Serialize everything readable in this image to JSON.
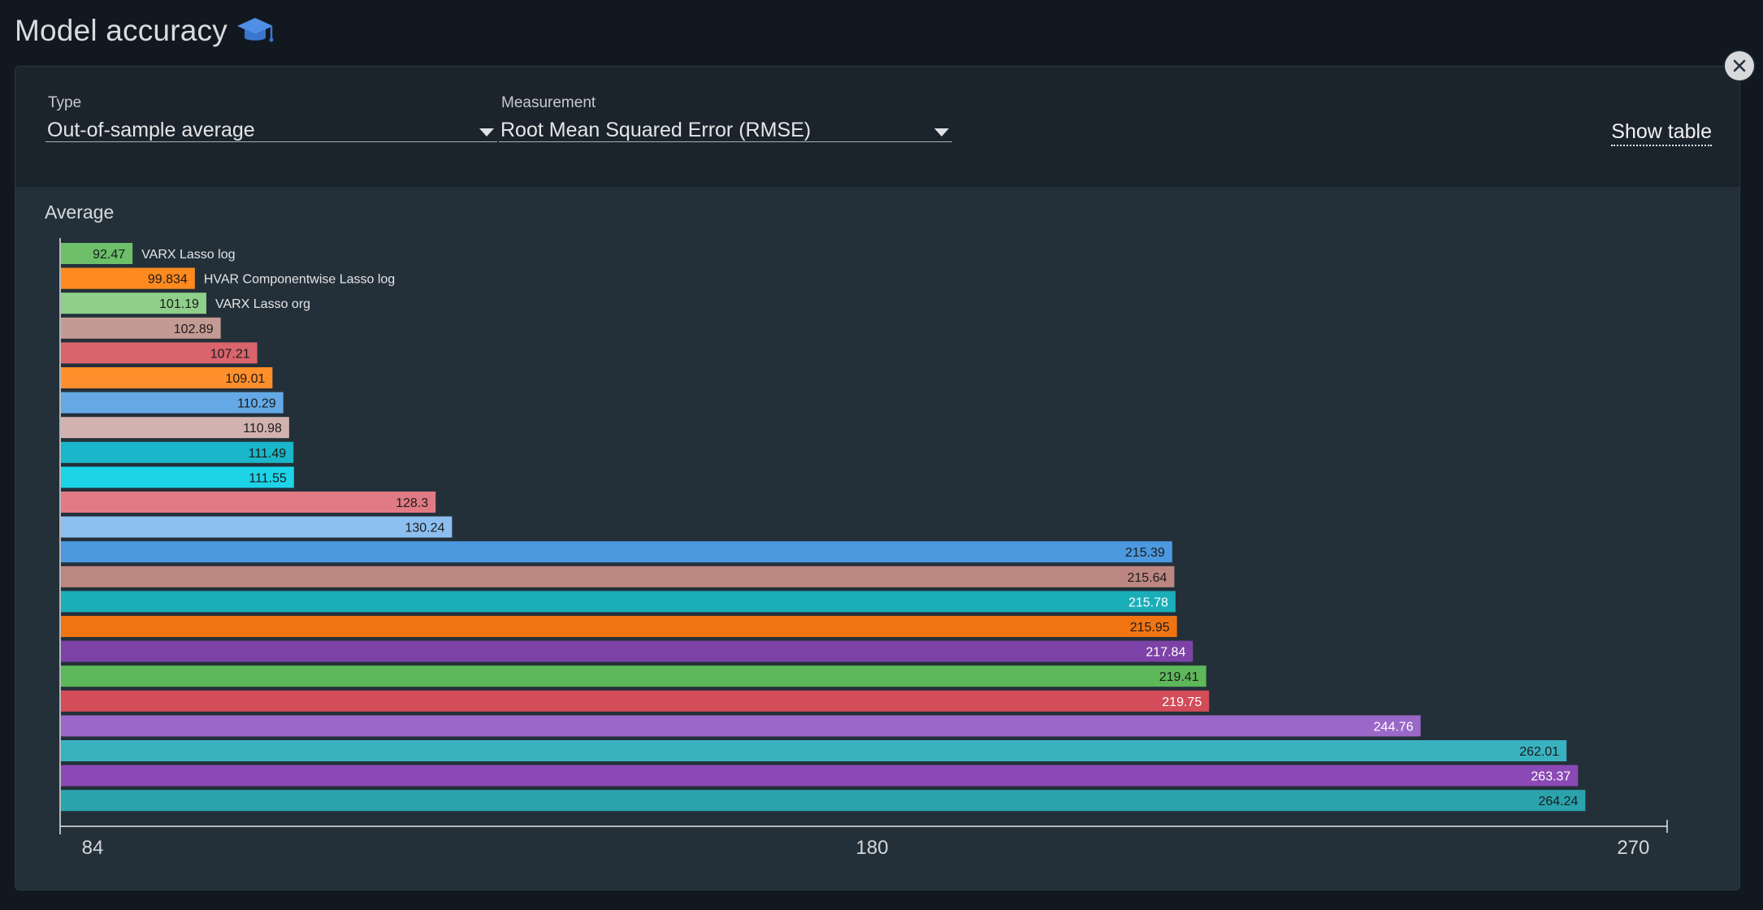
{
  "header": {
    "title": "Model accuracy",
    "title_icon": "graduation-cap-icon"
  },
  "controls": {
    "type_label": "Type",
    "type_value": "Out-of-sample average",
    "measurement_label": "Measurement",
    "measurement_value": "Root Mean Squared Error (RMSE)",
    "show_table_label": "Show table"
  },
  "close_icon": "close-icon",
  "chart_data": {
    "type": "bar",
    "orientation": "horizontal",
    "title": "Average",
    "xlim": [
      84,
      274
    ],
    "xticks": [
      84,
      180,
      270
    ],
    "grid": false,
    "values": [
      92.47,
      99.834,
      101.19,
      102.89,
      107.21,
      109.01,
      110.29,
      110.98,
      111.49,
      111.55,
      128.3,
      130.24,
      215.39,
      215.64,
      215.78,
      215.95,
      217.84,
      219.41,
      219.75,
      244.76,
      262.01,
      263.37,
      264.24
    ],
    "value_labels": [
      "92.47",
      "99.834",
      "101.19",
      "102.89",
      "107.21",
      "109.01",
      "110.29",
      "110.98",
      "111.49",
      "111.55",
      "128.3",
      "130.24",
      "215.39",
      "215.64",
      "215.78",
      "215.95",
      "217.84",
      "219.41",
      "219.75",
      "244.76",
      "262.01",
      "263.37",
      "264.24"
    ],
    "names": [
      "VARX Lasso log",
      "HVAR Componentwise Lasso log",
      "VARX Lasso org",
      "",
      "",
      "",
      "",
      "",
      "",
      "",
      "",
      "",
      "",
      "",
      "",
      "",
      "",
      "",
      "",
      "",
      "",
      "",
      ""
    ],
    "colors": [
      "#6dbf6a",
      "#ff8a1f",
      "#8ed08a",
      "#c49b94",
      "#d9646b",
      "#ff8f2b",
      "#64a9e5",
      "#d2b2ae",
      "#1ab6c9",
      "#1dd3e8",
      "#e07b84",
      "#8cbff0",
      "#4c99e0",
      "#bd8781",
      "#1aaeb9",
      "#f07512",
      "#7d42a6",
      "#5db85a",
      "#d24c5a",
      "#9a68c8",
      "#39b2c0",
      "#8a49b5",
      "#2aa3ad"
    ],
    "label_colors": [
      "#1b1b1b",
      "#1b1b1b",
      "#1b1b1b",
      "#1b1b1b",
      "#1b1b1b",
      "#1b1b1b",
      "#1b1b1b",
      "#1b1b1b",
      "#1b1b1b",
      "#1b1b1b",
      "#1b1b1b",
      "#1b1b1b",
      "#1b1b1b",
      "#1b1b1b",
      "#ffffff",
      "#1b1b1b",
      "#ffffff",
      "#1b1b1b",
      "#ffffff",
      "#ffffff",
      "#1b1b1b",
      "#ffffff",
      "#1b1b1b"
    ]
  }
}
